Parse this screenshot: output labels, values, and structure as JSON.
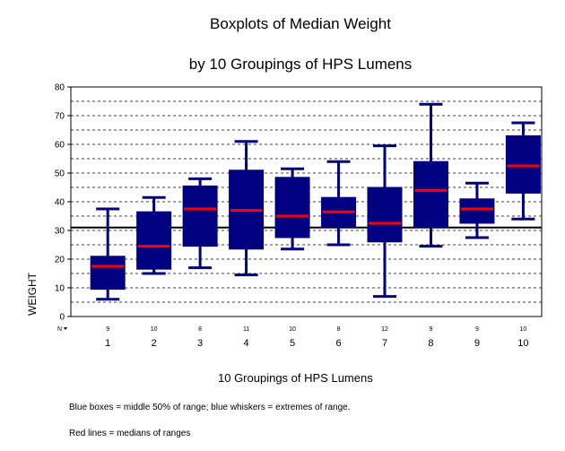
{
  "chart_data": {
    "type": "boxplot",
    "title": "Boxplots of Median Weight",
    "subtitle": "by 10 Groupings of HPS Lumens",
    "ylabel": "WEIGHT",
    "xlabel": "10 Groupings of HPS Lumens",
    "ylim": [
      0,
      80
    ],
    "yticks": [
      0,
      10,
      20,
      30,
      40,
      50,
      60,
      70,
      80
    ],
    "reference_line": 31,
    "n_label": "N",
    "categories": [
      "1",
      "2",
      "3",
      "4",
      "5",
      "6",
      "7",
      "8",
      "9",
      "10"
    ],
    "n": [
      "9",
      "10",
      "8",
      "11",
      "10",
      "8",
      "12",
      "9",
      "9",
      "10"
    ],
    "boxes": [
      {
        "min": 6,
        "q1": 9.5,
        "median": 17.5,
        "q3": 21,
        "max": 37.5
      },
      {
        "min": 15,
        "q1": 16.5,
        "median": 24.5,
        "q3": 36.5,
        "max": 41.5
      },
      {
        "min": 17,
        "q1": 24.5,
        "median": 37.5,
        "q3": 45.5,
        "max": 48
      },
      {
        "min": 14.5,
        "q1": 23.5,
        "median": 37,
        "q3": 51,
        "max": 61
      },
      {
        "min": 23.5,
        "q1": 27.5,
        "median": 35,
        "q3": 48.5,
        "max": 51.5
      },
      {
        "min": 25,
        "q1": 31,
        "median": 36.5,
        "q3": 41.5,
        "max": 54
      },
      {
        "min": 7,
        "q1": 26,
        "median": 32.5,
        "q3": 45,
        "max": 59.5
      },
      {
        "min": 24.5,
        "q1": 31,
        "median": 44,
        "q3": 54,
        "max": 74
      },
      {
        "min": 27.5,
        "q1": 32.5,
        "median": 37.5,
        "q3": 41,
        "max": 46.5
      },
      {
        "min": 34,
        "q1": 43,
        "median": 52.5,
        "q3": 63,
        "max": 67.5
      }
    ],
    "grid": true,
    "colors": {
      "box": "#000080",
      "median": "#ff0000",
      "grid": "#000000"
    }
  },
  "notes": {
    "line1": "Blue boxes = middle 50% of range; blue whiskers  = extremes of range.",
    "line2": "Red lines = medians of ranges"
  }
}
